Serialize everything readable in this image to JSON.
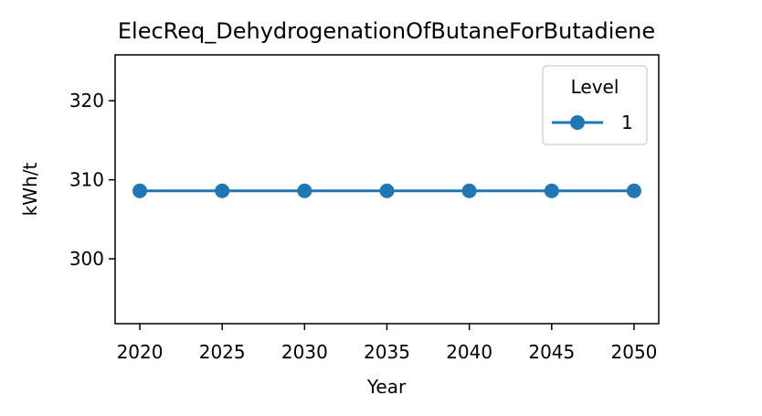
{
  "chart_data": {
    "type": "line",
    "title": "ElecReq_DehydrogenationOfButaneForButadiene",
    "xlabel": "Year",
    "ylabel": "kWh/t",
    "x": [
      2020,
      2025,
      2030,
      2035,
      2040,
      2045,
      2050
    ],
    "x_ticks": [
      "2020",
      "2025",
      "2030",
      "2035",
      "2040",
      "2045",
      "2050"
    ],
    "y_ticks": [
      300,
      310,
      320
    ],
    "xlim": [
      2018.5,
      2051.5
    ],
    "ylim": [
      291.8,
      325.8
    ],
    "grid": false,
    "legend": {
      "title": "Level",
      "placement": "top-right"
    },
    "series": [
      {
        "name": "1",
        "color": "#1f77b4",
        "marker": "circle",
        "values": [
          308.6,
          308.6,
          308.6,
          308.6,
          308.6,
          308.6,
          308.6
        ]
      }
    ]
  }
}
